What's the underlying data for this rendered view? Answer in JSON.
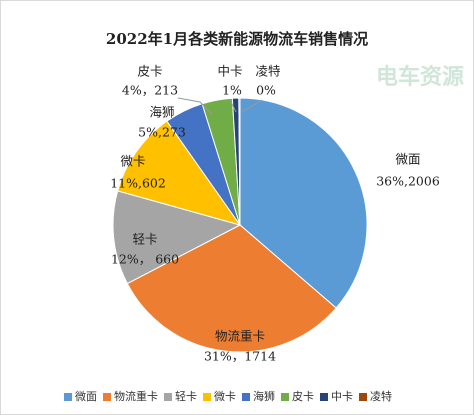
{
  "chart_data": {
    "type": "pie",
    "title": "2022年1月各类新能源物流车销售情况",
    "watermark": "电车资源",
    "categories": [
      "微面",
      "物流重卡",
      "轻卡",
      "微卡",
      "海狮",
      "皮卡",
      "中卡",
      "凌特"
    ],
    "values": [
      2006,
      1714,
      660,
      602,
      273,
      213,
      45,
      8
    ],
    "value_labels": [
      "36%,2006",
      "31%，1714",
      "12%， 660",
      "11%,602",
      "5%,273",
      "4%，213",
      "1%",
      "0%"
    ],
    "colors": [
      "#5b9bd5",
      "#ed7d31",
      "#a5a5a5",
      "#ffc000",
      "#4472c4",
      "#70ad47",
      "#264478",
      "#9e480e"
    ],
    "legend": "bottom"
  }
}
